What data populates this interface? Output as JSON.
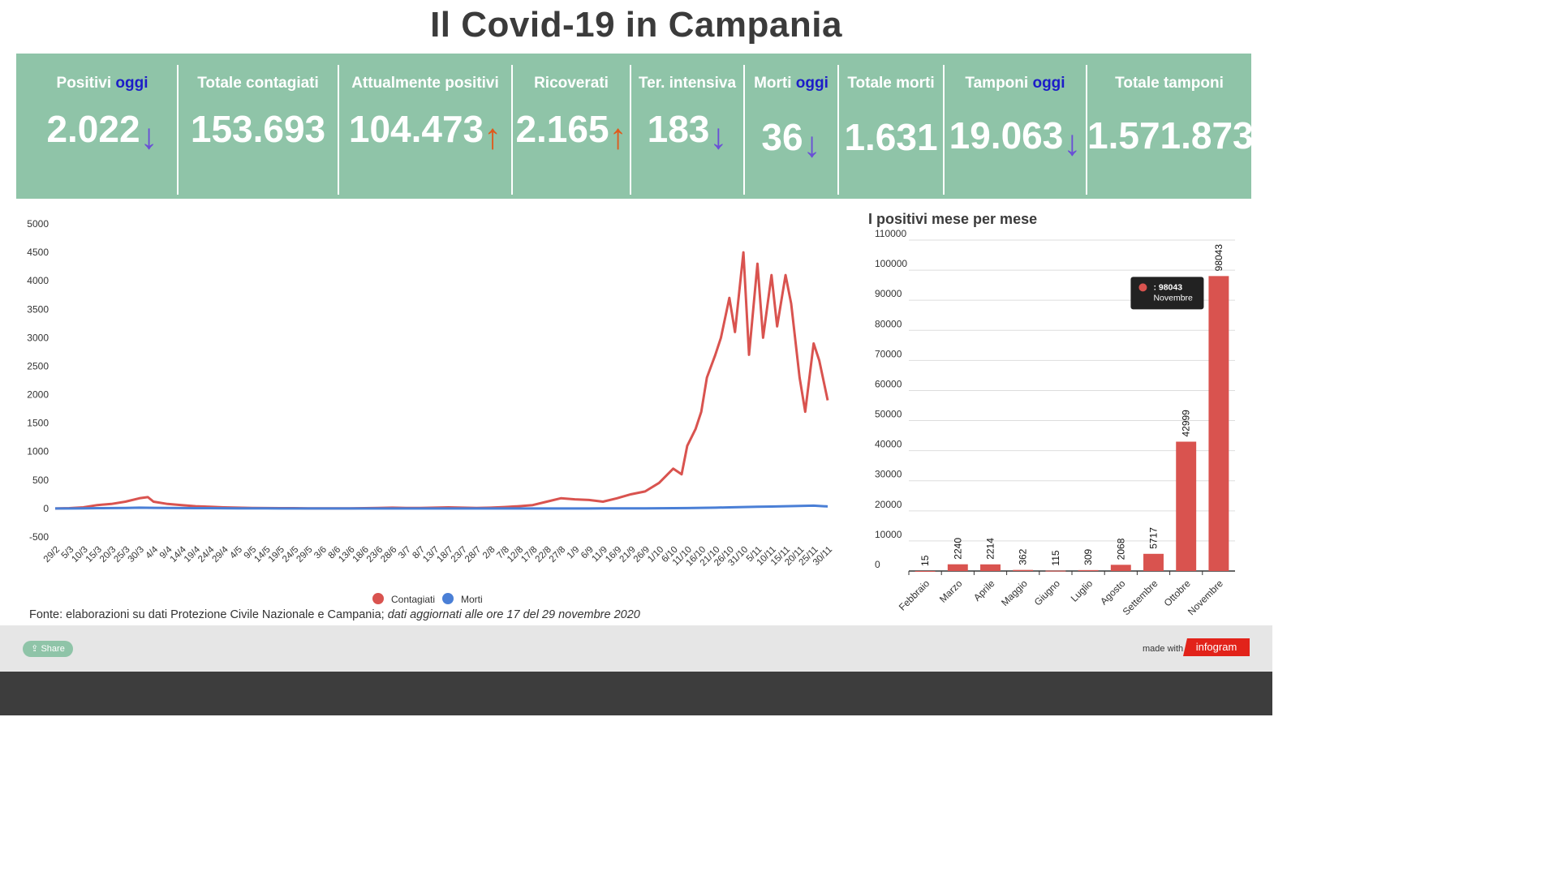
{
  "title": "Il Covid-19 in Campania",
  "kpis": [
    {
      "label": "Positivi",
      "label_highlight": "oggi",
      "value": "2.022",
      "trend": "down"
    },
    {
      "label": "Totale contagiati",
      "label_highlight": "",
      "value": "153.693",
      "trend": ""
    },
    {
      "label": "Attualmente positivi",
      "label_highlight": "",
      "value": "104.473",
      "trend": "up"
    },
    {
      "label": "Ricoverati",
      "label_highlight": "",
      "value": "2.165",
      "trend": "up"
    },
    {
      "label": "Ter. intensiva",
      "label_highlight": "",
      "value": "183",
      "trend": "down"
    },
    {
      "label": "Morti",
      "label_highlight": "oggi",
      "value": "36",
      "trend": "down"
    },
    {
      "label": "Totale morti",
      "label_highlight": "",
      "value": "1.631",
      "trend": ""
    },
    {
      "label": "Tamponi",
      "label_highlight": "oggi",
      "value": "19.063",
      "trend": "down"
    },
    {
      "label": "Totale tamponi",
      "label_highlight": "",
      "value": "1.571.873",
      "trend": ""
    }
  ],
  "arrows": {
    "down": "↓",
    "up": "↑"
  },
  "colors": {
    "kpi_background": "#8fc4a8",
    "oggi": "#1c1cc8",
    "contagiati": "#d9534f",
    "morti": "#4a7fd6",
    "bars": "#d9534f",
    "arrow_down": "#6a4fd6",
    "arrow_up": "#e05a1c"
  },
  "source": {
    "text": "Fonte: elaborazioni su dati Protezione Civile Nazionale e Campania; ",
    "italic": "dati aggiornati alle ore 17 del 29 novembre 2020"
  },
  "footer": {
    "share_label": "Share",
    "made_with": "made with",
    "brand": "infogram"
  },
  "chart_data": [
    {
      "type": "line",
      "title": "",
      "ylim": [
        -500,
        5000
      ],
      "yticks": [
        -500,
        0,
        500,
        1000,
        1500,
        2000,
        2500,
        3000,
        3500,
        4000,
        4500,
        5000
      ],
      "x_tick_labels": [
        "29/2",
        "5/3",
        "10/3",
        "15/3",
        "20/3",
        "25/3",
        "30/3",
        "4/4",
        "9/4",
        "14/4",
        "19/4",
        "24/4",
        "29/4",
        "4/5",
        "9/5",
        "14/5",
        "19/5",
        "24/5",
        "29/5",
        "3/6",
        "8/6",
        "13/6",
        "18/6",
        "23/6",
        "28/6",
        "3/7",
        "8/7",
        "13/7",
        "18/7",
        "23/7",
        "28/7",
        "2/8",
        "7/8",
        "12/8",
        "17/8",
        "22/8",
        "27/8",
        "1/9",
        "6/9",
        "11/9",
        "16/9",
        "21/9",
        "26/9",
        "1/10",
        "6/10",
        "11/10",
        "16/10",
        "21/10",
        "26/10",
        "31/10",
        "5/11",
        "10/11",
        "15/11",
        "20/11",
        "25/11",
        "30/11"
      ],
      "legend": [
        "Contagiati",
        "Morti"
      ],
      "legend_position": "bottom",
      "series": [
        {
          "name": "Contagiati",
          "x": [
            "29/2",
            "5/3",
            "10/3",
            "15/3",
            "20/3",
            "25/3",
            "30/3",
            "2/4",
            "4/4",
            "9/4",
            "14/4",
            "19/4",
            "24/4",
            "29/4",
            "4/5",
            "9/5",
            "14/5",
            "19/5",
            "24/5",
            "29/5",
            "3/6",
            "8/6",
            "13/6",
            "18/6",
            "23/6",
            "28/6",
            "3/7",
            "8/7",
            "13/7",
            "18/7",
            "23/7",
            "28/7",
            "2/8",
            "7/8",
            "12/8",
            "17/8",
            "22/8",
            "27/8",
            "1/9",
            "6/9",
            "11/9",
            "16/9",
            "21/9",
            "26/9",
            "1/10",
            "6/10",
            "9/10",
            "11/10",
            "14/10",
            "16/10",
            "18/10",
            "21/10",
            "23/10",
            "26/10",
            "28/10",
            "31/10",
            "2/11",
            "5/11",
            "7/11",
            "10/11",
            "12/11",
            "15/11",
            "17/11",
            "20/11",
            "22/11",
            "25/11",
            "27/11",
            "30/11"
          ],
          "values": [
            0,
            5,
            20,
            60,
            80,
            120,
            180,
            200,
            120,
            80,
            60,
            40,
            30,
            20,
            15,
            10,
            8,
            5,
            5,
            3,
            3,
            2,
            2,
            5,
            10,
            15,
            10,
            10,
            15,
            20,
            15,
            10,
            15,
            25,
            40,
            60,
            120,
            180,
            160,
            150,
            120,
            180,
            250,
            300,
            450,
            700,
            600,
            1100,
            1400,
            1700,
            2300,
            2700,
            3000,
            3700,
            3100,
            4500,
            2700,
            4300,
            3000,
            4100,
            3200,
            4100,
            3600,
            2300,
            1700,
            2900,
            2600,
            1900
          ]
        },
        {
          "name": "Morti",
          "x": [
            "29/2",
            "5/3",
            "10/3",
            "15/3",
            "20/3",
            "25/3",
            "30/3",
            "4/4",
            "9/4",
            "14/4",
            "19/4",
            "24/4",
            "29/4",
            "4/5",
            "9/5",
            "14/5",
            "19/5",
            "24/5",
            "29/5",
            "3/6",
            "8/6",
            "13/6",
            "18/6",
            "23/6",
            "28/6",
            "3/7",
            "8/7",
            "13/7",
            "18/7",
            "23/7",
            "28/7",
            "2/8",
            "7/8",
            "12/8",
            "17/8",
            "22/8",
            "27/8",
            "1/9",
            "6/9",
            "11/9",
            "16/9",
            "21/9",
            "26/9",
            "1/10",
            "6/10",
            "11/10",
            "16/10",
            "21/10",
            "26/10",
            "31/10",
            "5/11",
            "10/11",
            "15/11",
            "20/11",
            "25/11",
            "30/11"
          ],
          "values": [
            0,
            0,
            2,
            5,
            8,
            10,
            15,
            12,
            10,
            8,
            6,
            5,
            4,
            3,
            2,
            2,
            1,
            1,
            1,
            0,
            0,
            0,
            0,
            0,
            0,
            0,
            0,
            0,
            0,
            0,
            0,
            0,
            0,
            0,
            1,
            1,
            1,
            1,
            1,
            2,
            2,
            3,
            3,
            4,
            5,
            8,
            12,
            15,
            20,
            25,
            30,
            35,
            40,
            45,
            50,
            36
          ]
        }
      ]
    },
    {
      "type": "bar",
      "title": "I positivi mese per mese",
      "categories": [
        "Febbraio",
        "Marzo",
        "Aprile",
        "Maggio",
        "Giugno",
        "Luglio",
        "Agosto",
        "Settembre",
        "Ottobre",
        "Novembre"
      ],
      "values": [
        15,
        2240,
        2214,
        362,
        115,
        309,
        2068,
        5717,
        42999,
        98043
      ],
      "ylim": [
        0,
        110000
      ],
      "yticks": [
        0,
        10000,
        20000,
        30000,
        40000,
        50000,
        60000,
        70000,
        80000,
        90000,
        100000,
        110000
      ],
      "tooltip": {
        "value": ": 98043",
        "label": "Novembre"
      }
    }
  ]
}
